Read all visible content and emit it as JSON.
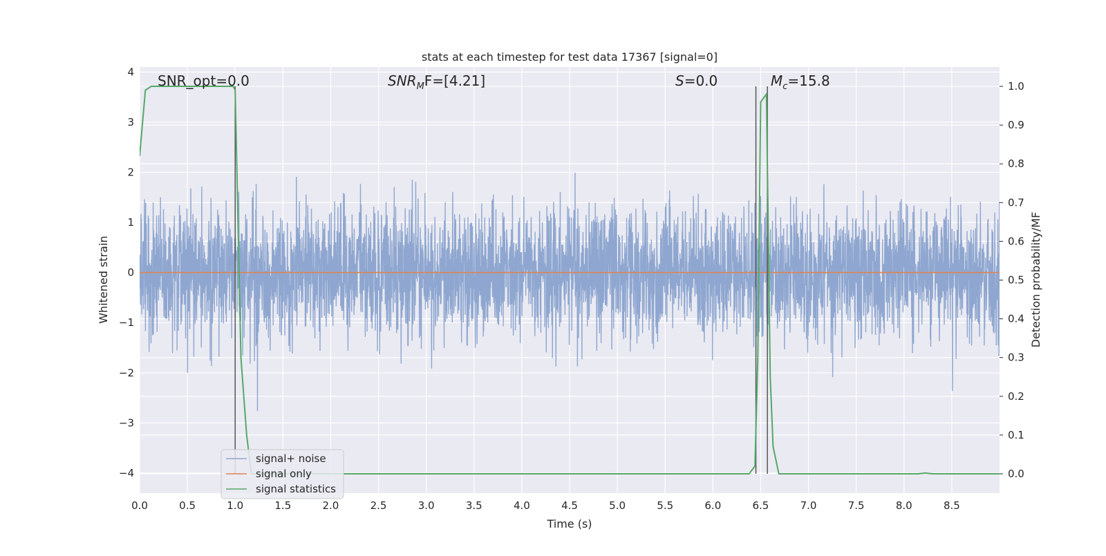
{
  "chart_data": {
    "type": "line",
    "title": "stats at each timestep for test data 17367 [signal=0]",
    "xlabel": "Time (s)",
    "ylabel": "Whitened strain",
    "y2label": "Detection probability/MF",
    "xlim": [
      0.0,
      9.0
    ],
    "ylim": [
      -4.4,
      4.1
    ],
    "y2lim": [
      -0.05,
      1.05
    ],
    "xticks": [
      "0.0",
      "0.5",
      "1.0",
      "1.5",
      "2.0",
      "2.5",
      "3.0",
      "3.5",
      "4.0",
      "4.5",
      "5.0",
      "5.5",
      "6.0",
      "6.5",
      "7.0",
      "7.5",
      "8.0",
      "8.5"
    ],
    "yticks": [
      "4",
      "3",
      "2",
      "1",
      "0",
      "−1",
      "−2",
      "−3",
      "−4"
    ],
    "y2ticks": [
      "1.0",
      "0.9",
      "0.8",
      "0.7",
      "0.6",
      "0.5",
      "0.4",
      "0.3",
      "0.2",
      "0.1",
      "0.0"
    ],
    "grid": true,
    "legend_position": "lower-left",
    "annotations": {
      "snr_opt": "SNR_opt=0.0",
      "snr_mf_main": "SNR",
      "snr_mf_sub": "M",
      "snr_mf_rest": "F=[4.21]",
      "s_main": "S",
      "s_rest": "=0.0",
      "mc_main": "M",
      "mc_sub": "c",
      "mc_rest": "=15.8"
    },
    "vertical_markers_x": [
      1.0,
      6.45,
      6.57
    ],
    "series": [
      {
        "name": "signal+ noise",
        "color": "#8fa7d0",
        "axis": "left",
        "style": "dense noise, amplitude ~1.7 sigma-band with spikes to ~3.7",
        "peak_max": 3.72,
        "peak_min": -3.82
      },
      {
        "name": "signal only",
        "color": "#dd8452",
        "axis": "left",
        "x": [
          0.0,
          9.0
        ],
        "y": [
          0.0,
          0.0
        ]
      },
      {
        "name": "signal statistics",
        "color": "#55a868",
        "axis": "right",
        "x": [
          0.0,
          0.06,
          0.12,
          0.2,
          0.5,
          0.8,
          0.98,
          1.0,
          1.06,
          1.12,
          1.17,
          1.5,
          2.0,
          3.0,
          4.0,
          5.0,
          6.0,
          6.38,
          6.44,
          6.47,
          6.5,
          6.56,
          6.6,
          6.63,
          6.69,
          7.0,
          7.5,
          8.0,
          8.15,
          8.22,
          8.3,
          8.5,
          9.0
        ],
        "y": [
          0.82,
          0.99,
          1.0,
          1.0,
          1.0,
          1.0,
          1.0,
          0.99,
          0.3,
          0.1,
          0.0,
          0.0,
          0.0,
          0.0,
          0.0,
          0.0,
          0.0,
          0.0,
          0.02,
          0.3,
          0.96,
          0.98,
          0.25,
          0.07,
          0.0,
          0.0,
          0.0,
          0.0,
          0.0,
          0.002,
          0.0,
          0.0,
          0.0
        ]
      }
    ]
  }
}
